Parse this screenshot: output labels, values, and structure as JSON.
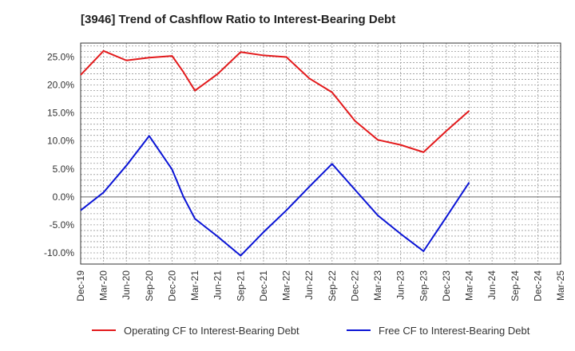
{
  "title": "[3946]  Trend of Cashflow Ratio to Interest-Bearing Debt",
  "chart_data": {
    "type": "line",
    "title": "[3946]  Trend of Cashflow Ratio to Interest-Bearing Debt",
    "xlabel": "",
    "ylabel": "",
    "categories": [
      "Dec-19",
      "Mar-20",
      "Jun-20",
      "Sep-20",
      "Dec-20",
      "Mar-21",
      "Jun-21",
      "Sep-21",
      "Dec-21",
      "Mar-22",
      "Jun-22",
      "Sep-22",
      "Dec-22",
      "Mar-23",
      "Jun-23",
      "Sep-23",
      "Dec-23",
      "Mar-24",
      "Jun-24",
      "Sep-24",
      "Dec-24",
      "Mar-25"
    ],
    "ylim": [
      -12,
      27.5
    ],
    "yticks": [
      -10,
      -5,
      0,
      5,
      10,
      15,
      20,
      25
    ],
    "ytick_labels": [
      "-10.0%",
      "-5.0%",
      "0.0%",
      "5.0%",
      "10.0%",
      "15.0%",
      "20.0%",
      "25.0%"
    ],
    "grid": true,
    "legend_position": "bottom",
    "series": [
      {
        "name": "Operating CF to Interest-Bearing Debt",
        "color": "#e31a1c",
        "points": [
          [
            0,
            21.8
          ],
          [
            1,
            26.1
          ],
          [
            2,
            24.4
          ],
          [
            3,
            24.9
          ],
          [
            4,
            25.2
          ],
          [
            4.5,
            22.3
          ],
          [
            5,
            19.0
          ],
          [
            6,
            22.0
          ],
          [
            7,
            25.9
          ],
          [
            8,
            25.3
          ],
          [
            9,
            25.0
          ],
          [
            10,
            21.2
          ],
          [
            11,
            18.7
          ],
          [
            12,
            13.6
          ],
          [
            13,
            10.2
          ],
          [
            14,
            9.3
          ],
          [
            15,
            8.0
          ],
          [
            16,
            11.8
          ],
          [
            17,
            15.4
          ]
        ]
      },
      {
        "name": "Free CF to Interest-Bearing Debt",
        "color": "#0a14d6",
        "points": [
          [
            0,
            -2.4
          ],
          [
            1,
            0.8
          ],
          [
            2,
            5.6
          ],
          [
            3,
            10.9
          ],
          [
            4,
            4.9
          ],
          [
            4.5,
            0.0
          ],
          [
            5,
            -3.9
          ],
          [
            6,
            -7.1
          ],
          [
            7,
            -10.5
          ],
          [
            8,
            -6.3
          ],
          [
            9,
            -2.4
          ],
          [
            10,
            1.8
          ],
          [
            11,
            5.9
          ],
          [
            12,
            1.3
          ],
          [
            13,
            -3.3
          ],
          [
            14,
            -6.6
          ],
          [
            15,
            -9.7
          ],
          [
            16,
            -3.6
          ],
          [
            17,
            2.6
          ]
        ]
      }
    ]
  }
}
